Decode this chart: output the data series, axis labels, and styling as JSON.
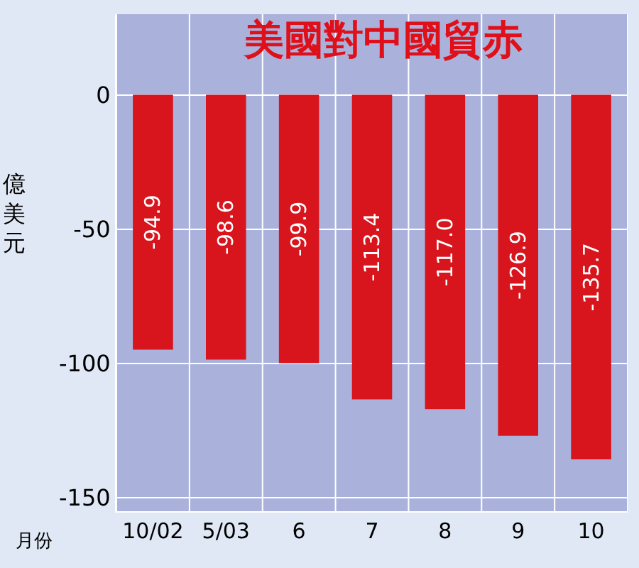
{
  "chart_data": {
    "type": "bar",
    "title": "美國對中國貿赤",
    "xlabel": "月份",
    "ylabel": "億美元",
    "categories": [
      "10/02",
      "5/03",
      "6",
      "7",
      "8",
      "9",
      "10"
    ],
    "values": [
      -94.9,
      -98.6,
      -99.9,
      -113.4,
      -117.0,
      -126.9,
      -135.7
    ],
    "value_labels": [
      "-94.9",
      "-98.6",
      "-99.9",
      "-113.4",
      "-117.0",
      "-126.9",
      "-135.7"
    ],
    "color": "#d8141c",
    "ylim": [
      -155,
      30
    ],
    "yticks": [
      0,
      -50,
      -100,
      -150
    ],
    "grid": true,
    "legend": false
  }
}
